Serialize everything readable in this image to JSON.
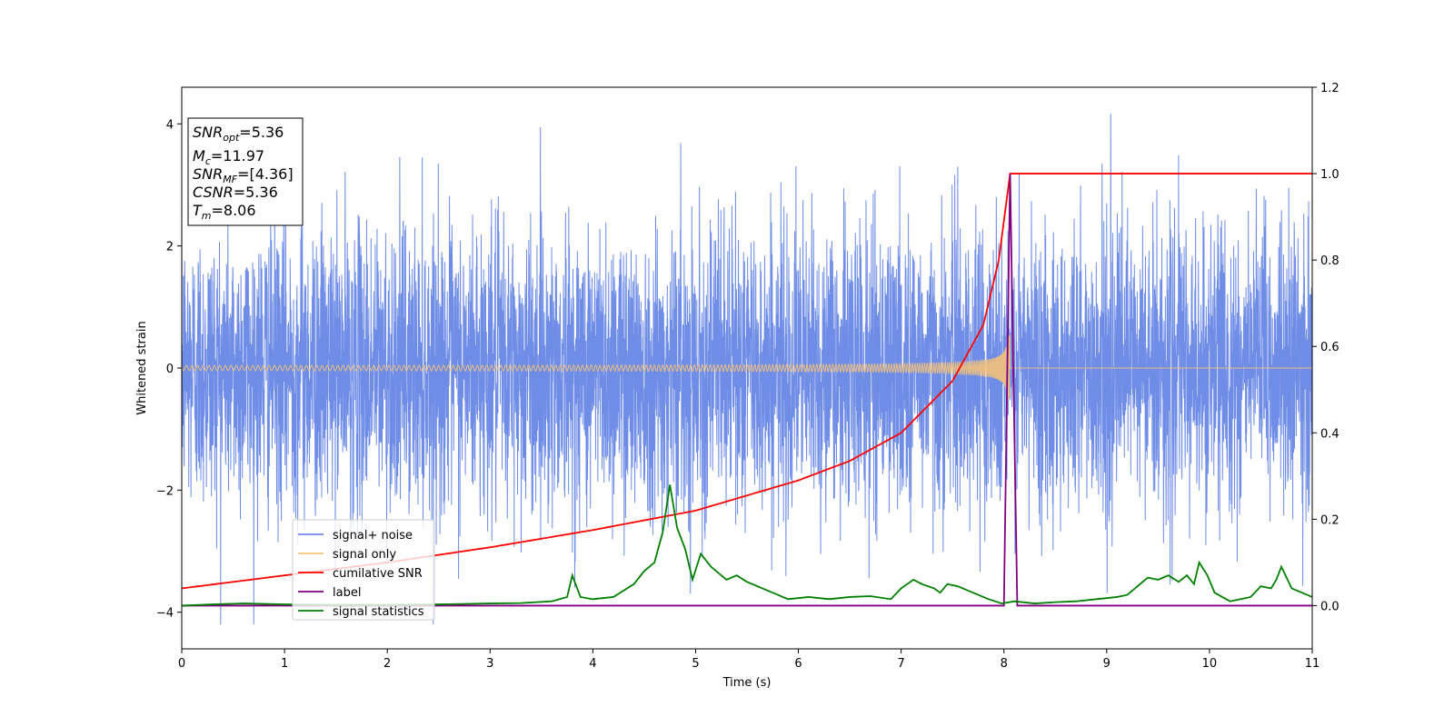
{
  "chart_data": {
    "type": "line",
    "xlabel": "Time (s)",
    "ylabel": "Whitened strain",
    "xlim": [
      0,
      11
    ],
    "ylim_left": [
      -4.6,
      4.6
    ],
    "ylim_right": [
      -0.1,
      1.2
    ],
    "x_ticks": [
      "0",
      "1",
      "2",
      "3",
      "4",
      "5",
      "6",
      "7",
      "8",
      "9",
      "10",
      "11"
    ],
    "y_ticks_left": [
      "−4",
      "−2",
      "0",
      "2",
      "4"
    ],
    "y_ticks_right": [
      "0.0",
      "0.2",
      "0.4",
      "0.6",
      "0.8",
      "1.0",
      "1.2"
    ],
    "legend_position": "lower-left",
    "grid": false,
    "info_box": {
      "snr_opt": {
        "var": "SNR",
        "sub": "opt",
        "val": "=5.36"
      },
      "mc": {
        "var": "M",
        "sub": "c",
        "val": "=11.97"
      },
      "snr_mf": {
        "var": "SNR",
        "sub": "MF",
        "val": "=[4.36]"
      },
      "csnr": {
        "var": "CSNR",
        "val": "=5.36"
      },
      "tm": {
        "var": "T",
        "sub": "m",
        "val": "=8.06"
      }
    },
    "series": [
      {
        "name": "signal+ noise",
        "color": "#6f8de6",
        "axis": "left",
        "description_values": {
          "sample_rate_hz": 512,
          "noise_std": 1.15,
          "max_abs_approx": 4.2
        }
      },
      {
        "name": "signal only",
        "color": "#f4c27a",
        "axis": "left",
        "chirp": {
          "merger_time": 8.06,
          "peak_amplitude": 0.55,
          "start_amplitude": 0.03
        }
      },
      {
        "name": "cumilative SNR",
        "color": "#ff0000",
        "axis": "right",
        "x": [
          0,
          1,
          2,
          3,
          4,
          5,
          6,
          6.5,
          7,
          7.5,
          7.8,
          7.95,
          8.06,
          11
        ],
        "y": [
          0.04,
          0.07,
          0.1,
          0.135,
          0.175,
          0.22,
          0.29,
          0.335,
          0.4,
          0.52,
          0.65,
          0.8,
          1.0,
          1.0
        ]
      },
      {
        "name": "label",
        "color": "#800080",
        "axis": "right",
        "x": [
          0,
          8.0,
          8.06,
          8.13,
          11
        ],
        "y": [
          0,
          0,
          1,
          0,
          0
        ]
      },
      {
        "name": "signal statistics",
        "color": "#008000",
        "axis": "right",
        "x": [
          0,
          0.3,
          0.6,
          1,
          1.5,
          2,
          2.5,
          3,
          3.3,
          3.6,
          3.75,
          3.8,
          3.88,
          4,
          4.2,
          4.4,
          4.5,
          4.6,
          4.68,
          4.75,
          4.82,
          4.9,
          4.97,
          5.05,
          5.15,
          5.3,
          5.4,
          5.5,
          5.6,
          5.75,
          5.9,
          6.1,
          6.3,
          6.5,
          6.7,
          6.9,
          7.0,
          7.12,
          7.2,
          7.32,
          7.38,
          7.45,
          7.55,
          7.7,
          7.85,
          7.98,
          8.1,
          8.3,
          8.5,
          8.7,
          8.9,
          9.1,
          9.2,
          9.3,
          9.4,
          9.5,
          9.6,
          9.7,
          9.78,
          9.85,
          9.9,
          9.98,
          10.05,
          10.2,
          10.3,
          10.4,
          10.5,
          10.6,
          10.65,
          10.7,
          10.8,
          10.9,
          11
        ],
        "y": [
          0,
          0.003,
          0.005,
          0.003,
          0.002,
          0.002,
          0.003,
          0.005,
          0.006,
          0.01,
          0.02,
          0.07,
          0.02,
          0.015,
          0.02,
          0.05,
          0.08,
          0.1,
          0.17,
          0.28,
          0.18,
          0.13,
          0.06,
          0.12,
          0.09,
          0.06,
          0.07,
          0.055,
          0.045,
          0.03,
          0.015,
          0.02,
          0.015,
          0.02,
          0.022,
          0.015,
          0.04,
          0.06,
          0.05,
          0.04,
          0.03,
          0.05,
          0.045,
          0.03,
          0.015,
          0.005,
          0.01,
          0.005,
          0.008,
          0.01,
          0.015,
          0.02,
          0.025,
          0.045,
          0.065,
          0.06,
          0.07,
          0.055,
          0.07,
          0.05,
          0.1,
          0.07,
          0.03,
          0.01,
          0.015,
          0.02,
          0.045,
          0.04,
          0.06,
          0.09,
          0.04,
          0.03,
          0.02
        ]
      }
    ]
  }
}
